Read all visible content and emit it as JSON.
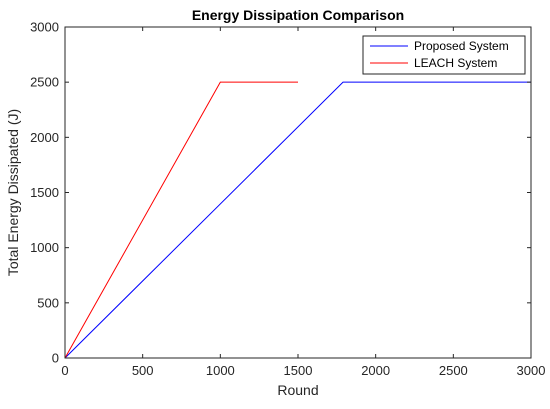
{
  "chart_data": {
    "type": "line",
    "title": "Energy Dissipation Comparison",
    "xlabel": "Round",
    "ylabel": "Total Energy Dissipated (J)",
    "xlim": [
      0,
      3000
    ],
    "ylim": [
      0,
      3000
    ],
    "xticks": [
      0,
      500,
      1000,
      1500,
      2000,
      2500,
      3000
    ],
    "yticks": [
      0,
      500,
      1000,
      1500,
      2000,
      2500,
      3000
    ],
    "grid": false,
    "legend_position": "top-right",
    "series": [
      {
        "name": "Proposed System",
        "color": "#0000ff",
        "x": [
          0,
          1790,
          3000
        ],
        "y": [
          0,
          2500,
          2500
        ]
      },
      {
        "name": "LEACH System",
        "color": "#ff0000",
        "x": [
          0,
          1000,
          1500
        ],
        "y": [
          0,
          2500,
          2500
        ]
      }
    ]
  }
}
